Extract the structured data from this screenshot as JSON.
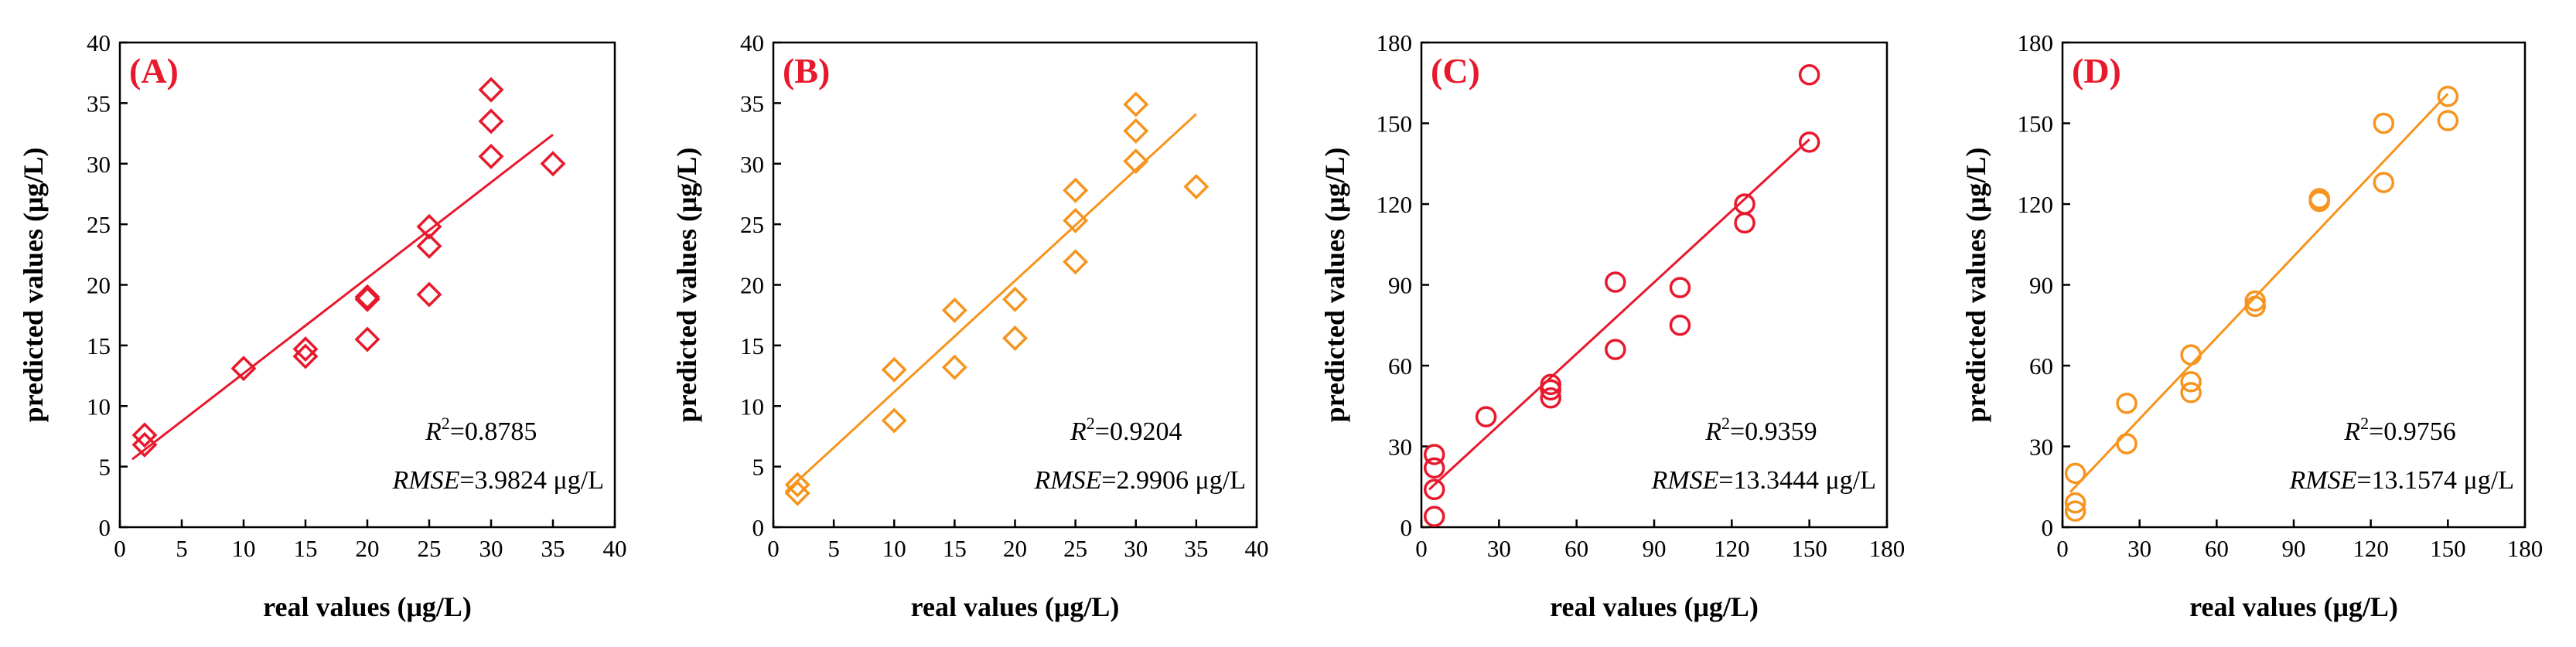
{
  "colors": {
    "red": "#e8192c",
    "orange": "#f7941d",
    "axis": "#000000"
  },
  "chart_data": [
    {
      "type": "scatter",
      "panel_label": "(A)",
      "xlabel": "real values (μg/L)",
      "ylabel": "predicted values (μg/L)",
      "xlim": [
        0,
        40
      ],
      "ylim": [
        0,
        40
      ],
      "xticks": [
        0,
        5,
        10,
        15,
        20,
        25,
        30,
        35,
        40
      ],
      "yticks": [
        0,
        5,
        10,
        15,
        20,
        25,
        30,
        35,
        40
      ],
      "marker": "diamond",
      "color": "#e8192c",
      "points": [
        [
          2,
          7.6
        ],
        [
          2,
          6.8
        ],
        [
          10,
          13.1
        ],
        [
          15,
          14.7
        ],
        [
          15,
          14.1
        ],
        [
          20,
          19
        ],
        [
          20,
          18.8
        ],
        [
          20,
          15.5
        ],
        [
          25,
          24.8
        ],
        [
          25,
          23.2
        ],
        [
          25,
          19.2
        ],
        [
          30,
          36.1
        ],
        [
          30,
          33.5
        ],
        [
          30,
          30.6
        ],
        [
          35,
          30
        ]
      ],
      "fit": {
        "x": [
          1,
          35
        ],
        "y": [
          5.6,
          32.4
        ]
      },
      "r2_label": "R",
      "r2_sup": "2",
      "r2_value": "=0.8785",
      "rmse_label": "RMSE",
      "rmse_value": "=3.9824 μg/L"
    },
    {
      "type": "scatter",
      "panel_label": "(B)",
      "xlabel": "real values (μg/L)",
      "ylabel": "predicted values (μg/L)",
      "xlim": [
        0,
        40
      ],
      "ylim": [
        0,
        40
      ],
      "xticks": [
        0,
        5,
        10,
        15,
        20,
        25,
        30,
        35,
        40
      ],
      "yticks": [
        0,
        5,
        10,
        15,
        20,
        25,
        30,
        35,
        40
      ],
      "marker": "diamond",
      "color": "#f7941d",
      "points": [
        [
          2,
          3.5
        ],
        [
          2,
          2.8
        ],
        [
          10,
          13
        ],
        [
          10,
          8.8
        ],
        [
          15,
          17.9
        ],
        [
          15,
          13.2
        ],
        [
          20,
          18.8
        ],
        [
          20,
          15.6
        ],
        [
          25,
          27.8
        ],
        [
          25,
          25.3
        ],
        [
          25,
          21.9
        ],
        [
          30,
          34.9
        ],
        [
          30,
          32.7
        ],
        [
          30,
          30.2
        ],
        [
          35,
          28.1
        ]
      ],
      "fit": {
        "x": [
          1,
          35
        ],
        "y": [
          2.9,
          34.1
        ]
      },
      "r2_label": "R",
      "r2_sup": "2",
      "r2_value": "=0.9204",
      "rmse_label": "RMSE",
      "rmse_value": "=2.9906 μg/L"
    },
    {
      "type": "scatter",
      "panel_label": "(C)",
      "xlabel": "real values (μg/L)",
      "ylabel": "predicted values (μg/L)",
      "xlim": [
        0,
        180
      ],
      "ylim": [
        0,
        180
      ],
      "xticks": [
        0,
        30,
        60,
        90,
        120,
        150,
        180
      ],
      "yticks": [
        0,
        30,
        60,
        90,
        120,
        150,
        180
      ],
      "marker": "circle",
      "color": "#e8192c",
      "points": [
        [
          5,
          27
        ],
        [
          5,
          22
        ],
        [
          5,
          14
        ],
        [
          5,
          4
        ],
        [
          25,
          41
        ],
        [
          50,
          53
        ],
        [
          50,
          51
        ],
        [
          50,
          48
        ],
        [
          75,
          91
        ],
        [
          75,
          66
        ],
        [
          100,
          89
        ],
        [
          100,
          75
        ],
        [
          125,
          120
        ],
        [
          125,
          113
        ],
        [
          150,
          168
        ],
        [
          150,
          143
        ]
      ],
      "fit": {
        "x": [
          3,
          150
        ],
        "y": [
          14,
          144
        ]
      },
      "r2_label": "R",
      "r2_sup": "2",
      "r2_value": "=0.9359",
      "rmse_label": "RMSE",
      "rmse_value": "=13.3444 μg/L"
    },
    {
      "type": "scatter",
      "panel_label": "(D)",
      "xlabel": "real values (μg/L)",
      "ylabel": "predicted values (μg/L)",
      "xlim": [
        0,
        180
      ],
      "ylim": [
        0,
        180
      ],
      "xticks": [
        0,
        30,
        60,
        90,
        120,
        150,
        180
      ],
      "yticks": [
        0,
        30,
        60,
        90,
        120,
        150,
        180
      ],
      "marker": "circle",
      "color": "#f7941d",
      "points": [
        [
          5,
          20
        ],
        [
          5,
          9
        ],
        [
          5,
          6
        ],
        [
          25,
          46
        ],
        [
          25,
          31
        ],
        [
          50,
          64
        ],
        [
          50,
          54
        ],
        [
          50,
          50
        ],
        [
          75,
          84
        ],
        [
          75,
          82
        ],
        [
          100,
          122
        ],
        [
          100,
          121
        ],
        [
          125,
          150
        ],
        [
          125,
          128
        ],
        [
          150,
          160
        ],
        [
          150,
          151
        ]
      ],
      "fit": {
        "x": [
          3,
          150
        ],
        "y": [
          13,
          161
        ]
      },
      "r2_label": "R",
      "r2_sup": "2",
      "r2_value": "=0.9756",
      "rmse_label": "RMSE",
      "rmse_value": "=13.1574 μg/L"
    }
  ]
}
